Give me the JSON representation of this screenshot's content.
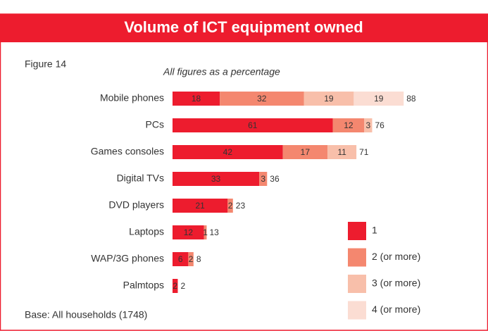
{
  "chart_data": {
    "type": "stacked-bar",
    "title": "Volume of ICT equipment owned",
    "figure_label": "Figure 14",
    "subtitle": "All figures as a percentage",
    "note": "Base: All households (1748)",
    "categories": [
      "Mobile phones",
      "PCs",
      "Games consoles",
      "Digital TVs",
      "DVD players",
      "Laptops",
      "WAP/3G phones",
      "Palmtops"
    ],
    "series": [
      {
        "name": "1",
        "color": "#ed1c2e",
        "values": [
          18,
          61,
          42,
          33,
          21,
          12,
          6,
          2
        ]
      },
      {
        "name": "2 (or more)",
        "color": "#f4876f",
        "values": [
          32,
          12,
          17,
          3,
          2,
          1,
          2,
          null
        ]
      },
      {
        "name": "3 (or more)",
        "color": "#f8bfaa",
        "values": [
          19,
          3,
          11,
          null,
          null,
          null,
          null,
          null
        ]
      },
      {
        "name": "4 (or more)",
        "color": "#fbddd3",
        "values": [
          19,
          null,
          null,
          null,
          null,
          null,
          null,
          null
        ]
      }
    ],
    "totals": [
      88,
      76,
      71,
      36,
      23,
      13,
      8,
      2
    ]
  }
}
